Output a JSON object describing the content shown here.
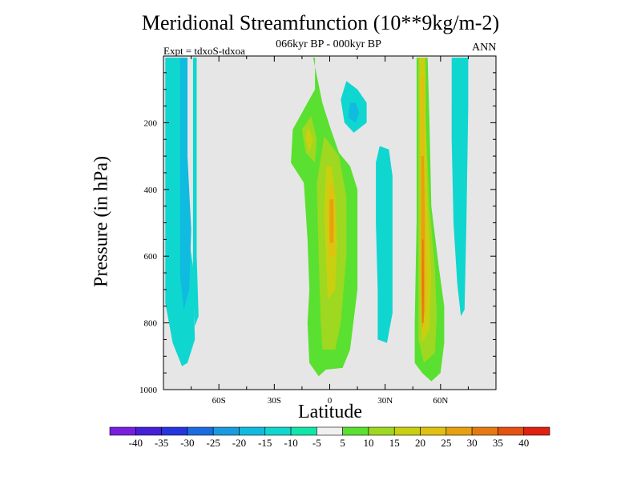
{
  "chart_data": {
    "type": "heatmap",
    "title": "Meridional Streamfunction (10**9kg/m-2)",
    "subtitle": "066kyr BP - 000kyr BP",
    "experiment": "Expt = tdxoS-tdxoa",
    "season": "ANN",
    "xlabel": "Latitude",
    "ylabel": "Pressure (in hPa)",
    "xlim": [
      -90,
      90
    ],
    "ylim": [
      0,
      1000
    ],
    "y_inverted": true,
    "x_ticks": [
      {
        "value": -60,
        "label": "60S"
      },
      {
        "value": -30,
        "label": "30S"
      },
      {
        "value": 0,
        "label": "0"
      },
      {
        "value": 30,
        "label": "30N"
      },
      {
        "value": 60,
        "label": "60N"
      }
    ],
    "y_ticks": [
      {
        "value": 200,
        "label": "200"
      },
      {
        "value": 400,
        "label": "400"
      },
      {
        "value": 600,
        "label": "600"
      },
      {
        "value": 800,
        "label": "800"
      },
      {
        "value": 1000,
        "label": "1000"
      }
    ],
    "background_color": "#e6e6e6",
    "colorbar": {
      "levels": [
        "-40",
        "-35",
        "-30",
        "-25",
        "-20",
        "-15",
        "-10",
        "-5",
        "5",
        "10",
        "15",
        "20",
        "25",
        "30",
        "35",
        "40"
      ],
      "colors": [
        "#7a1ee0",
        "#4520d8",
        "#2535e0",
        "#1a6ce0",
        "#1a9be0",
        "#10bbe0",
        "#10d6d0",
        "#10e6a8",
        "#f0f0f0",
        "#5ae030",
        "#9ed820",
        "#c8d010",
        "#e0c010",
        "#e6a010",
        "#e67a10",
        "#e65010",
        "#e02010"
      ]
    },
    "regions": [
      {
        "name": "sh-polar-cell",
        "level": -10,
        "color": "#10d6d0",
        "points": [
          [
            -89,
            5
          ],
          [
            -79,
            5
          ],
          [
            -79,
            450
          ],
          [
            -74,
            630
          ],
          [
            -73,
            850
          ],
          [
            -77,
            920
          ],
          [
            -80,
            930
          ],
          [
            -85,
            860
          ],
          [
            -87,
            800
          ],
          [
            -89,
            740
          ]
        ]
      },
      {
        "name": "sh-polar-core",
        "level": -15,
        "color": "#10bbe0",
        "points": [
          [
            -81,
            5
          ],
          [
            -77,
            5
          ],
          [
            -77,
            300
          ],
          [
            -75,
            520
          ],
          [
            -76,
            700
          ],
          [
            -79,
            760
          ],
          [
            -81,
            660
          ]
        ]
      },
      {
        "name": "sh-high-lat-strip",
        "level": -10,
        "color": "#10d6d0",
        "points": [
          [
            -74,
            5
          ],
          [
            -72,
            5
          ],
          [
            -72,
            600
          ],
          [
            -71,
            780
          ],
          [
            -73,
            810
          ],
          [
            -74,
            700
          ]
        ]
      },
      {
        "name": "sh-hadley-cell",
        "level": 5,
        "color": "#5ae030",
        "points": [
          [
            -9,
            5
          ],
          [
            -8,
            5
          ],
          [
            -8,
            100
          ],
          [
            -14,
            160
          ],
          [
            -20,
            220
          ],
          [
            -21,
            320
          ],
          [
            -14,
            380
          ],
          [
            -12,
            550
          ],
          [
            -11,
            700
          ],
          [
            -12,
            800
          ],
          [
            -11,
            920
          ],
          [
            -6,
            960
          ],
          [
            -2,
            940
          ],
          [
            7,
            935
          ],
          [
            11,
            880
          ],
          [
            15,
            700
          ],
          [
            15,
            400
          ],
          [
            11,
            330
          ],
          [
            5,
            290
          ],
          [
            0,
            210
          ],
          [
            -4,
            140
          ]
        ]
      },
      {
        "name": "sh-hadley-upper",
        "level": 10,
        "color": "#9ed820",
        "points": [
          [
            -10,
            180
          ],
          [
            -15,
            220
          ],
          [
            -13,
            290
          ],
          [
            -8,
            320
          ],
          [
            -7,
            250
          ]
        ]
      },
      {
        "name": "sh-hadley-lower",
        "level": 10,
        "color": "#9ed820",
        "points": [
          [
            -3,
            240
          ],
          [
            -7,
            380
          ],
          [
            -6,
            600
          ],
          [
            -5,
            780
          ],
          [
            -4,
            880
          ],
          [
            3,
            880
          ],
          [
            6,
            800
          ],
          [
            9,
            600
          ],
          [
            9,
            420
          ],
          [
            5,
            300
          ]
        ]
      },
      {
        "name": "sh-hadley-mid",
        "level": 15,
        "color": "#c8d010",
        "points": [
          [
            -2,
            330
          ],
          [
            -3,
            470
          ],
          [
            -2,
            620
          ],
          [
            -1,
            730
          ],
          [
            3,
            700
          ],
          [
            4,
            560
          ],
          [
            3,
            420
          ],
          [
            1,
            330
          ]
        ]
      },
      {
        "name": "sh-hadley-inner",
        "level": 20,
        "color": "#e0c010",
        "points": [
          [
            0,
            380
          ],
          [
            -1,
            480
          ],
          [
            0,
            600
          ],
          [
            3,
            600
          ],
          [
            3,
            480
          ],
          [
            2,
            380
          ]
        ]
      },
      {
        "name": "sh-hadley-core",
        "level": 25,
        "color": "#e6a010",
        "points": [
          [
            0,
            430
          ],
          [
            0,
            560
          ],
          [
            2,
            560
          ],
          [
            2,
            430
          ]
        ]
      },
      {
        "name": "sh-hadley-upper-core",
        "level": 15,
        "color": "#c8d010",
        "points": [
          [
            -12,
            210
          ],
          [
            -13,
            250
          ],
          [
            -11,
            290
          ],
          [
            -9,
            250
          ]
        ]
      },
      {
        "name": "tropical-upper-negative",
        "level": -10,
        "color": "#10d6d0",
        "points": [
          [
            9,
            75
          ],
          [
            6,
            130
          ],
          [
            8,
            200
          ],
          [
            13,
            230
          ],
          [
            20,
            200
          ],
          [
            20,
            140
          ],
          [
            15,
            100
          ]
        ]
      },
      {
        "name": "tropical-upper-core",
        "level": -15,
        "color": "#10bbe0",
        "points": [
          [
            11,
            140
          ],
          [
            10,
            185
          ],
          [
            14,
            200
          ],
          [
            16,
            170
          ],
          [
            14,
            140
          ]
        ]
      },
      {
        "name": "nh-subtropical-negative",
        "level": -10,
        "color": "#10d6d0",
        "points": [
          [
            27,
            270
          ],
          [
            25,
            320
          ],
          [
            25,
            500
          ],
          [
            26,
            700
          ],
          [
            26,
            850
          ],
          [
            31,
            860
          ],
          [
            34,
            770
          ],
          [
            34,
            560
          ],
          [
            34,
            360
          ],
          [
            32,
            280
          ]
        ]
      },
      {
        "name": "nh-ferrel-cell",
        "level": 5,
        "color": "#5ae030",
        "points": [
          [
            47,
            5
          ],
          [
            53,
            5
          ],
          [
            54,
            200
          ],
          [
            55,
            450
          ],
          [
            59,
            630
          ],
          [
            62,
            750
          ],
          [
            62,
            860
          ],
          [
            60,
            950
          ],
          [
            55,
            975
          ],
          [
            50,
            950
          ],
          [
            46,
            920
          ],
          [
            46,
            800
          ],
          [
            47,
            500
          ]
        ]
      },
      {
        "name": "nh-ferrel-outer",
        "level": 10,
        "color": "#9ed820",
        "points": [
          [
            48,
            5
          ],
          [
            52,
            5
          ],
          [
            52,
            200
          ],
          [
            54,
            450
          ],
          [
            57,
            640
          ],
          [
            58,
            780
          ],
          [
            57,
            890
          ],
          [
            51,
            920
          ],
          [
            48,
            850
          ],
          [
            48,
            500
          ]
        ]
      },
      {
        "name": "nh-ferrel-mid",
        "level": 15,
        "color": "#c8d010",
        "points": [
          [
            48.5,
            5
          ],
          [
            51.5,
            5
          ],
          [
            52,
            200
          ],
          [
            53,
            450
          ],
          [
            55,
            650
          ],
          [
            54,
            820
          ],
          [
            50,
            860
          ],
          [
            49,
            700
          ],
          [
            49,
            400
          ]
        ]
      },
      {
        "name": "nh-ferrel-inner",
        "level": 20,
        "color": "#e0c010",
        "points": [
          [
            49,
            60
          ],
          [
            51,
            60
          ],
          [
            51,
            300
          ],
          [
            52,
            500
          ],
          [
            53,
            700
          ],
          [
            51,
            830
          ],
          [
            49.5,
            800
          ],
          [
            49,
            600
          ],
          [
            49,
            350
          ]
        ]
      },
      {
        "name": "nh-ferrel-core",
        "level": 25,
        "color": "#e6a010",
        "points": [
          [
            49.5,
            300
          ],
          [
            51,
            300
          ],
          [
            51.5,
            480
          ],
          [
            51.5,
            760
          ],
          [
            50,
            820
          ],
          [
            49.5,
            650
          ]
        ]
      },
      {
        "name": "nh-ferrel-peak",
        "level": 30,
        "color": "#e67a10",
        "points": [
          [
            50,
            550
          ],
          [
            50.8,
            550
          ],
          [
            51,
            700
          ],
          [
            50.8,
            800
          ],
          [
            50,
            800
          ],
          [
            49.8,
            700
          ]
        ]
      },
      {
        "name": "nh-polar-negative",
        "level": -10,
        "color": "#10d6d0",
        "points": [
          [
            66,
            5
          ],
          [
            75,
            5
          ],
          [
            75,
            150
          ],
          [
            74,
            500
          ],
          [
            73,
            760
          ],
          [
            71,
            780
          ],
          [
            69,
            680
          ],
          [
            67,
            500
          ],
          [
            66,
            250
          ]
        ]
      }
    ]
  }
}
